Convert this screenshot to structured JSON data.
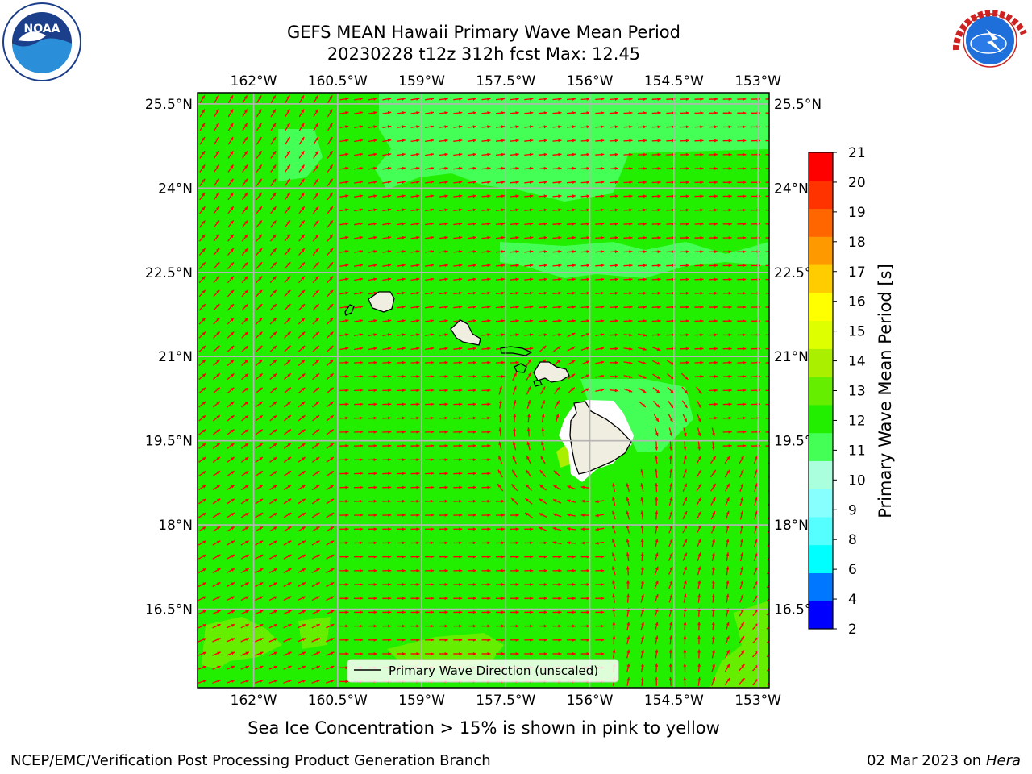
{
  "title": {
    "line1": "GEFS MEAN Hawaii Primary Wave Mean Period",
    "line2": "20230228 t12z 312h fcst   Max: 12.45"
  },
  "map": {
    "lon_ticks": [
      "162°W",
      "160.5°W",
      "159°W",
      "157.5°W",
      "156°W",
      "154.5°W",
      "153°W"
    ],
    "lat_ticks": [
      "25.5°N",
      "24°N",
      "22.5°N",
      "21°N",
      "19.5°N",
      "18°N",
      "16.5°N"
    ],
    "lon_range": [
      -163.0,
      -152.8
    ],
    "lat_range": [
      15.1,
      25.7
    ],
    "background_color": "#22ee00",
    "arrow_color": "#ff0000",
    "grid": true,
    "legend": {
      "label": "Primary Wave Direction (unscaled)",
      "position": "bottom-center"
    }
  },
  "colorbar": {
    "label": "Primary Wave Mean Period [s]",
    "ticks": [
      "2",
      "4",
      "6",
      "8",
      "9",
      "10",
      "11",
      "12",
      "13",
      "14",
      "15",
      "16",
      "17",
      "18",
      "19",
      "20",
      "21"
    ],
    "colors": [
      "#0000ff",
      "#0077ff",
      "#00ffff",
      "#55ffff",
      "#88ffff",
      "#aaffdd",
      "#44ff55",
      "#22ee00",
      "#66ee00",
      "#aaee00",
      "#ddff00",
      "#ffff00",
      "#ffcc00",
      "#ff9900",
      "#ff6600",
      "#ff3300",
      "#ff0000"
    ]
  },
  "note": "Sea Ice Concentration > 15% is shown in pink to yellow",
  "credit_left": "NCEP/EMC/Verification Post Processing Product Generation Branch",
  "credit_right_date": "02 Mar 2023 on",
  "credit_right_host": "Hera",
  "logos": {
    "noaa_text": "NOAA",
    "noaa_ring": "NATIONAL OCEANIC AND ATMOSPHERIC ADMINISTRATION · U.S. DEPARTMENT OF COMMERCE",
    "nws_ring": "NATIONAL WEATHER SERVICE"
  }
}
